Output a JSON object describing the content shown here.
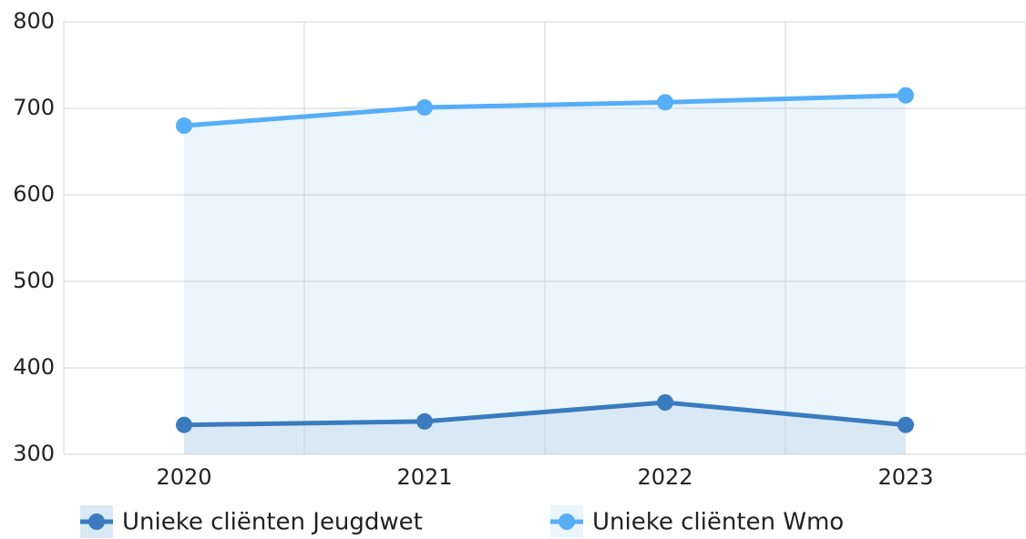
{
  "chart_data": {
    "type": "line",
    "categories": [
      "2020",
      "2021",
      "2022",
      "2023"
    ],
    "series": [
      {
        "name": "Unieke cliënten Jeugdwet",
        "color": "#3a7bbf",
        "fill_color": "#d9e8f5",
        "values": [
          334,
          338,
          360,
          334
        ]
      },
      {
        "name": "Unieke cliënten Wmo",
        "color": "#56aef7",
        "fill_color": "#eaf5fd",
        "values": [
          680,
          701,
          707,
          715
        ]
      }
    ],
    "ylim": [
      300,
      800
    ],
    "yticks": [
      300,
      400,
      500,
      600,
      700,
      800
    ],
    "grid": true,
    "legend": "bottom",
    "filled": true
  }
}
